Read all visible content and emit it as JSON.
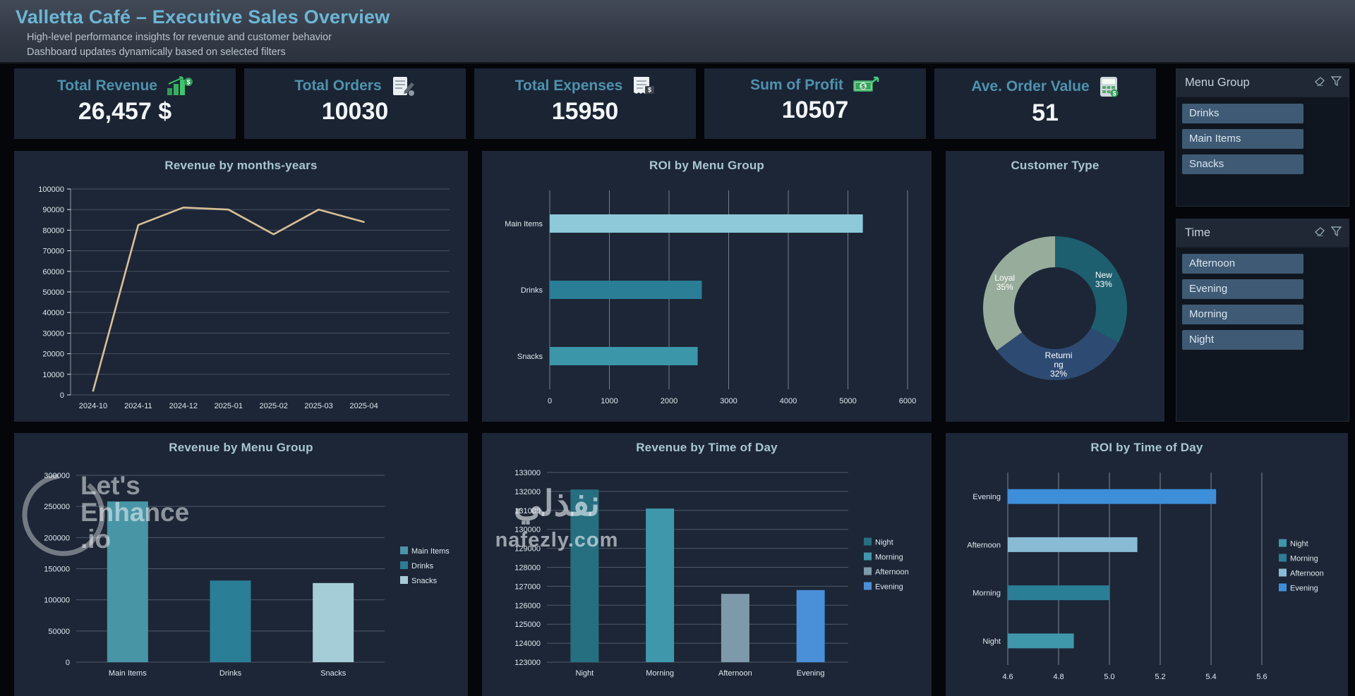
{
  "header": {
    "title": "Valletta Café – Executive Sales Overview",
    "subtitle1": "High-level performance insights for revenue and customer behavior",
    "subtitle2": "Dashboard updates dynamically based on selected filters"
  },
  "kpis": [
    {
      "label": "Total Revenue",
      "value": "26,457 $",
      "icon": "growth-bars-dollar-icon"
    },
    {
      "label": "Total Orders",
      "value": "10030",
      "icon": "clipboard-pencil-icon"
    },
    {
      "label": "Total Expenses",
      "value": "15950",
      "icon": "invoice-receipt-icon"
    },
    {
      "label": "Sum of Profit",
      "value": "10507",
      "icon": "banknote-growth-icon"
    },
    {
      "label": "Ave. Order Value",
      "value": "51",
      "icon": "calculator-icon"
    }
  ],
  "slicers": [
    {
      "title": "Menu Group",
      "items": [
        "Drinks",
        "Main Items",
        "Snacks"
      ],
      "header_icons": [
        "eraser-icon",
        "funnel-icon"
      ]
    },
    {
      "title": "Time",
      "items": [
        "Afternoon",
        "Evening",
        "Morning",
        "Night"
      ],
      "header_icons": [
        "eraser-icon",
        "funnel-icon"
      ]
    }
  ],
  "watermarks": {
    "lets_enhance": [
      "Let's",
      "Enhance",
      ".io"
    ],
    "nafezly_arabic": "نفذلي",
    "nafezly_domain": "nafezly.com"
  },
  "colors": {
    "page_bg": "#04060a",
    "panel_bg": "#1d2636",
    "accent_title": "#6cb6d6",
    "kpi_label": "#4e92ae",
    "chart_title": "#a9c6d3",
    "slicer_button": "#3f5a74",
    "line_series": "#d8bf97"
  },
  "chart_data": [
    {
      "id": "revenue_by_month",
      "type": "line",
      "title": "Revenue by months-years",
      "categories": [
        "2024-10",
        "2024-11",
        "2024-12",
        "2025-01",
        "2025-02",
        "2025-03",
        "2025-04"
      ],
      "values": [
        2000,
        82500,
        91000,
        90000,
        78000,
        90000,
        84000
      ],
      "ylim": [
        0,
        100000
      ],
      "ytick": 10000,
      "line_color": "#d8bf97",
      "legend_position": "none",
      "grid": "horizontal"
    },
    {
      "id": "roi_by_menu_group",
      "type": "bar_h",
      "title": "ROI by Menu Group",
      "categories": [
        "Main Items",
        "Drinks",
        "Snacks"
      ],
      "values": [
        5250,
        2550,
        2480
      ],
      "xlim": [
        0,
        6000
      ],
      "xtick": 1000,
      "colors": [
        "#8ec9da",
        "#2a7e96",
        "#3c96aa"
      ],
      "grid": "vertical"
    },
    {
      "id": "customer_type",
      "type": "pie",
      "title": "Customer Type",
      "slices": [
        {
          "label": "New",
          "pct": 33,
          "color": "#1d5f6f"
        },
        {
          "label": "Returning",
          "pct": 32,
          "color": "#2d4a72",
          "wrap": [
            "Returni",
            "ng"
          ]
        },
        {
          "label": "Loyal",
          "pct": 35,
          "color": "#97ac9b"
        }
      ]
    },
    {
      "id": "revenue_by_menu_group",
      "type": "bar_v",
      "title": "Revenue by Menu Group",
      "categories": [
        "Main Items",
        "Drinks",
        "Snacks"
      ],
      "values": [
        258000,
        131000,
        127000
      ],
      "ylim": [
        0,
        300000
      ],
      "ytick": 50000,
      "colors": [
        "#4895a6",
        "#2a7e96",
        "#a5cdd8"
      ],
      "legend": [
        {
          "label": "Main Items",
          "color": "#4895a6"
        },
        {
          "label": "Drinks",
          "color": "#2a7e96"
        },
        {
          "label": "Snacks",
          "color": "#a5cdd8"
        }
      ],
      "legend_position": "right",
      "grid": "horizontal"
    },
    {
      "id": "revenue_by_time",
      "type": "bar_v",
      "title": "Revenue by Time of Day",
      "categories": [
        "Night",
        "Morning",
        "Afternoon",
        "Evening"
      ],
      "values": [
        132100,
        131100,
        126600,
        126800
      ],
      "ylim": [
        123000,
        133000
      ],
      "ytick": 1000,
      "colors": [
        "#266f80",
        "#3f97ab",
        "#7e99a9",
        "#4a90d9"
      ],
      "legend": [
        {
          "label": "Night",
          "color": "#266f80"
        },
        {
          "label": "Morning",
          "color": "#3f97ab"
        },
        {
          "label": "Afternoon",
          "color": "#7e99a9"
        },
        {
          "label": "Evening",
          "color": "#4a90d9"
        }
      ],
      "legend_position": "right",
      "grid": "horizontal"
    },
    {
      "id": "roi_by_time",
      "type": "bar_h",
      "title": "ROI by Time of Day",
      "categories": [
        "Evening",
        "Afternoon",
        "Morning",
        "Night"
      ],
      "values": [
        5.42,
        5.11,
        5.0,
        4.86
      ],
      "xlim": [
        4.6,
        5.6
      ],
      "xtick": 0.2,
      "colors": [
        "#3d8fd9",
        "#8abbd4",
        "#2a7e96",
        "#3f97ab"
      ],
      "legend": [
        {
          "label": "Night",
          "color": "#3f97ab"
        },
        {
          "label": "Morning",
          "color": "#2a7e96"
        },
        {
          "label": "Afternoon",
          "color": "#8abbd4"
        },
        {
          "label": "Evening",
          "color": "#3d8fd9"
        }
      ],
      "legend_position": "right",
      "grid": "vertical"
    }
  ]
}
